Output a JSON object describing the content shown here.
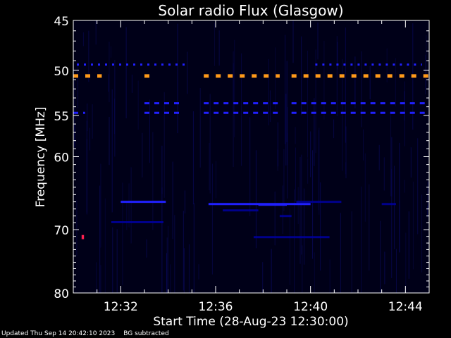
{
  "chart_data": {
    "type": "heatmap",
    "title": "Solar radio Flux (Glasgow)",
    "xlabel": "Start Time (28-Aug-23 12:30:00)",
    "ylabel": "Frequency [MHz]",
    "x_ticks": [
      "12:32",
      "12:36",
      "12:40",
      "12:44"
    ],
    "x_tick_minutes": [
      2,
      6,
      10,
      14
    ],
    "xlim_minutes": [
      0,
      15
    ],
    "y_ticks": [
      45,
      50,
      55,
      60,
      70,
      80
    ],
    "ylim": [
      45,
      80
    ],
    "y_scale": "log",
    "colors": {
      "background": "#000000",
      "plot_bg": "#000018",
      "low": "#0000a0",
      "mid": "#2020ff",
      "high": "#ff9a1a",
      "burst": "#ff2050"
    },
    "features": [
      {
        "freq": 49.4,
        "t_start": 0.15,
        "t_end": 4.8,
        "intensity": "mid",
        "dash": "dotted"
      },
      {
        "freq": 49.4,
        "t_start": 10.2,
        "t_end": 14.7,
        "intensity": "mid",
        "dash": "dotted"
      },
      {
        "freq": 50.6,
        "t_start": 0.0,
        "t_end": 1.2,
        "intensity": "high",
        "dash": "dashed"
      },
      {
        "freq": 50.6,
        "t_start": 3.0,
        "t_end": 3.3,
        "intensity": "high",
        "dash": "dashed"
      },
      {
        "freq": 50.6,
        "t_start": 5.5,
        "t_end": 8.7,
        "intensity": "high",
        "dash": "dashed"
      },
      {
        "freq": 50.6,
        "t_start": 9.2,
        "t_end": 15.0,
        "intensity": "high",
        "dash": "dashed"
      },
      {
        "freq": 53.6,
        "t_start": 3.0,
        "t_end": 4.5,
        "intensity": "mid",
        "dash": "dashed"
      },
      {
        "freq": 53.6,
        "t_start": 5.5,
        "t_end": 8.7,
        "intensity": "mid",
        "dash": "dashed"
      },
      {
        "freq": 53.6,
        "t_start": 9.2,
        "t_end": 15.0,
        "intensity": "mid",
        "dash": "dashed"
      },
      {
        "freq": 54.7,
        "t_start": 0.0,
        "t_end": 0.5,
        "intensity": "mid",
        "dash": "dashed"
      },
      {
        "freq": 54.7,
        "t_start": 3.0,
        "t_end": 4.5,
        "intensity": "mid",
        "dash": "dashed"
      },
      {
        "freq": 54.7,
        "t_start": 5.5,
        "t_end": 8.7,
        "intensity": "mid",
        "dash": "dashed"
      },
      {
        "freq": 54.7,
        "t_start": 9.2,
        "t_end": 15.0,
        "intensity": "mid",
        "dash": "dashed"
      },
      {
        "freq": 66.0,
        "t_start": 2.0,
        "t_end": 3.9,
        "intensity": "mid",
        "dash": "solid"
      },
      {
        "freq": 66.3,
        "t_start": 5.7,
        "t_end": 10.0,
        "intensity": "mid",
        "dash": "solid"
      },
      {
        "freq": 66.4,
        "t_start": 7.8,
        "t_end": 9.0,
        "intensity": "mid",
        "dash": "solid"
      },
      {
        "freq": 66.0,
        "t_start": 9.4,
        "t_end": 11.3,
        "intensity": "low",
        "dash": "solid"
      },
      {
        "freq": 66.3,
        "t_start": 13.0,
        "t_end": 13.6,
        "intensity": "low",
        "dash": "solid"
      },
      {
        "freq": 67.2,
        "t_start": 6.3,
        "t_end": 7.8,
        "intensity": "low",
        "dash": "solid"
      },
      {
        "freq": 68.0,
        "t_start": 8.7,
        "t_end": 9.2,
        "intensity": "low",
        "dash": "solid"
      },
      {
        "freq": 68.9,
        "t_start": 1.6,
        "t_end": 3.8,
        "intensity": "low",
        "dash": "solid"
      },
      {
        "freq": 71.1,
        "t_start": 0.35,
        "t_end": 0.45,
        "intensity": "burst",
        "dash": "solid"
      },
      {
        "freq": 71.1,
        "t_start": 7.6,
        "t_end": 10.8,
        "intensity": "low",
        "dash": "solid"
      }
    ]
  },
  "footer": {
    "updated": "Updated Thu Sep 14 20:42:10 2023",
    "note": "BG subtracted"
  }
}
